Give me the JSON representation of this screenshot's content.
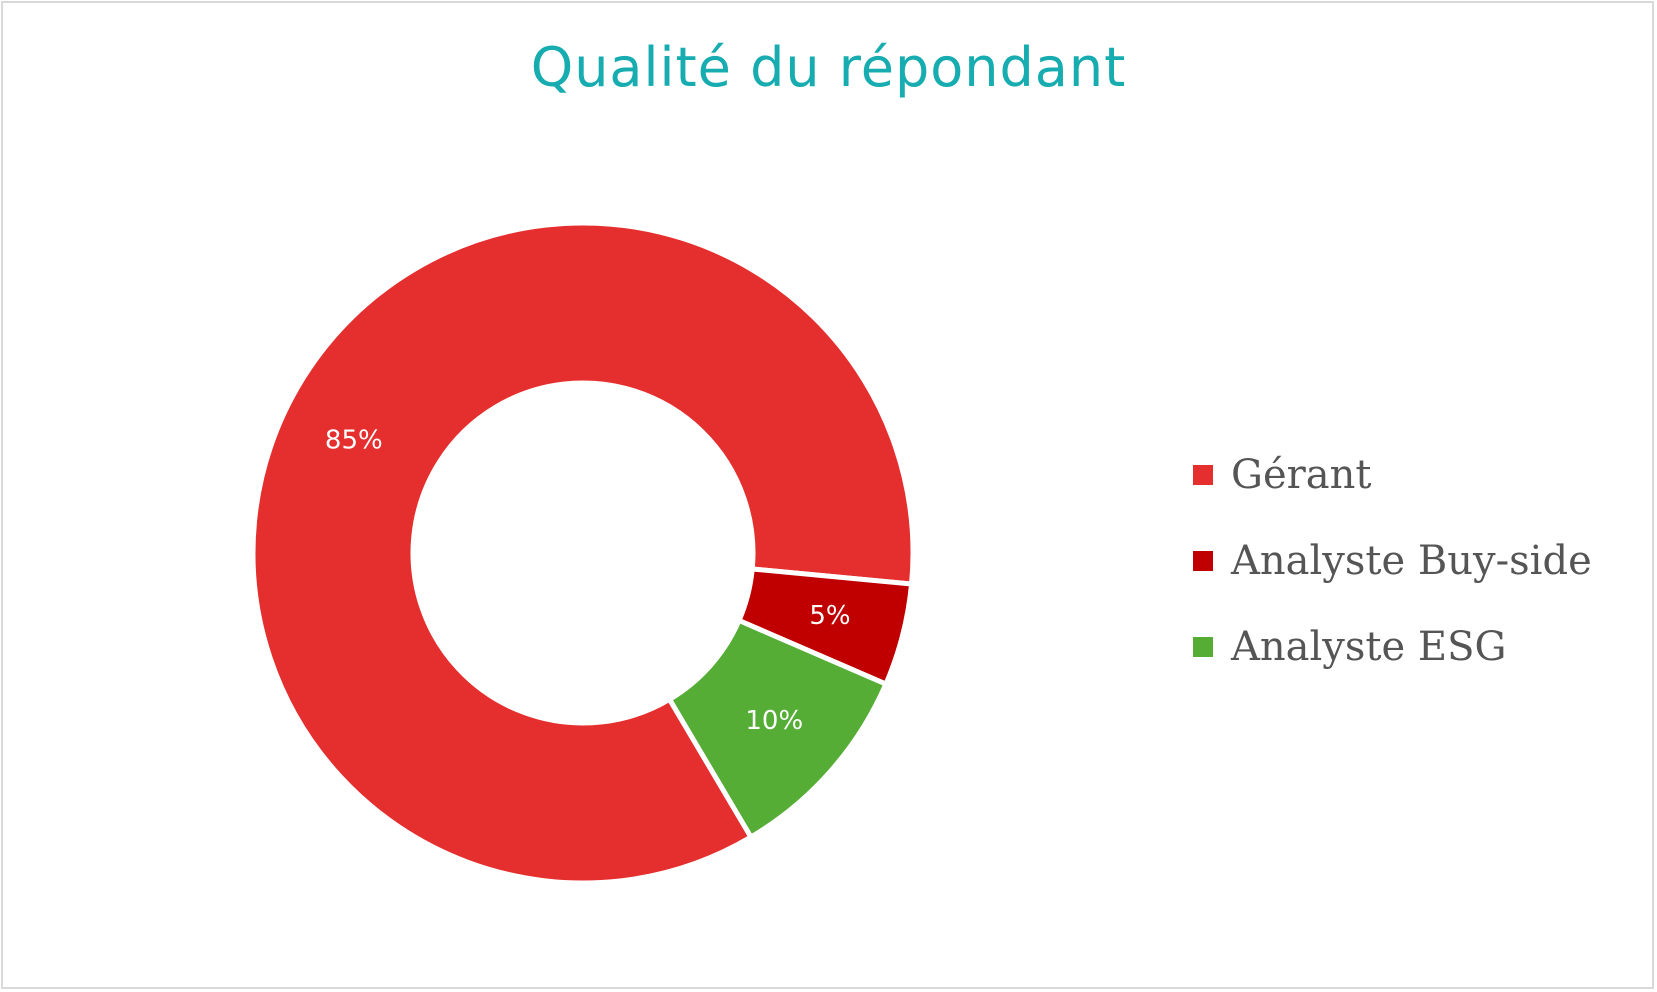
{
  "chart_data": {
    "type": "pie",
    "variant": "donut",
    "title": "Qualité du répondant",
    "slices": [
      {
        "label": "Gérant",
        "value": 85,
        "display": "85%",
        "color": "#e52e2e"
      },
      {
        "label": "Analyste Buy-side",
        "value": 5,
        "display": "5%",
        "color": "#c00000"
      },
      {
        "label": "Analyste ESG",
        "value": 10,
        "display": "10%",
        "color": "#55ad36"
      }
    ],
    "legend_position": "right"
  }
}
